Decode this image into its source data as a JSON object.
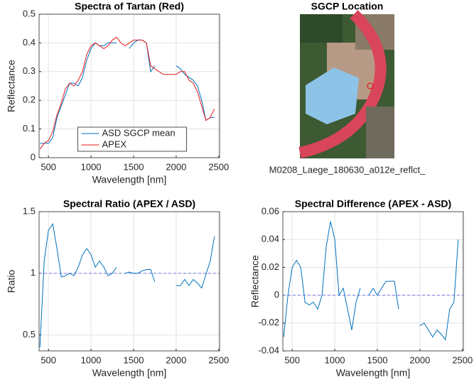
{
  "chart_data": [
    {
      "type": "line",
      "title": "Spectra of Tartan (Red)",
      "xlabel": "Wavelength [nm]",
      "ylabel": "Reflectance",
      "x": [
        400,
        450,
        500,
        550,
        600,
        650,
        700,
        750,
        800,
        850,
        900,
        950,
        1000,
        1050,
        1100,
        1150,
        1200,
        1250,
        1300,
        1350,
        1400,
        1450,
        1500,
        1550,
        1600,
        1650,
        1700,
        1750,
        1800,
        1850,
        1900,
        1950,
        2000,
        2050,
        2100,
        2150,
        2200,
        2250,
        2300,
        2350,
        2400,
        2450
      ],
      "xlim": [
        390,
        2510
      ],
      "xticks": [
        500,
        1000,
        1500,
        2000,
        2500
      ],
      "ylim": [
        0,
        0.5
      ],
      "yticks": [
        0,
        0.1,
        0.2,
        0.3,
        0.4,
        0.5
      ],
      "grid": true,
      "legend": "lower center",
      "series": [
        {
          "name": "ASD SGCP mean",
          "color": "#0072bd",
          "values": [
            0.05,
            0.05,
            0.05,
            0.07,
            0.14,
            0.18,
            0.22,
            0.26,
            0.26,
            0.25,
            0.28,
            0.34,
            0.38,
            0.4,
            0.39,
            0.39,
            0.4,
            0.4,
            0.4,
            null,
            null,
            0.38,
            0.4,
            0.41,
            0.41,
            0.4,
            0.3,
            0.32,
            null,
            null,
            null,
            null,
            0.32,
            0.31,
            0.29,
            0.28,
            0.27,
            0.25,
            0.2,
            0.13,
            0.14,
            0.14
          ]
        },
        {
          "name": "APEX",
          "color": "#e41a1c",
          "values": [
            0.03,
            0.05,
            0.06,
            0.09,
            0.15,
            0.19,
            0.24,
            0.26,
            0.25,
            0.27,
            0.3,
            0.36,
            0.39,
            0.4,
            0.39,
            0.38,
            0.39,
            0.41,
            0.42,
            0.4,
            0.39,
            0.4,
            0.41,
            0.41,
            0.41,
            0.4,
            0.32,
            0.31,
            0.3,
            0.29,
            0.29,
            0.29,
            0.29,
            0.3,
            0.3,
            0.27,
            0.26,
            0.23,
            0.18,
            0.13,
            0.14,
            0.17
          ]
        }
      ]
    },
    {
      "type": "image",
      "title": "SGCP Location",
      "caption": "M0208_Laege_180630_a012e_reflct_"
    },
    {
      "type": "line",
      "title": "Spectral Ratio (APEX / ASD)",
      "xlabel": "Wavelength [nm]",
      "ylabel": "Ratio",
      "x": [
        400,
        450,
        500,
        550,
        600,
        650,
        700,
        750,
        800,
        850,
        900,
        950,
        1000,
        1050,
        1100,
        1150,
        1200,
        1250,
        1300,
        1350,
        1400,
        1450,
        1500,
        1550,
        1600,
        1650,
        1700,
        1750,
        1800,
        1850,
        1900,
        1950,
        2000,
        2050,
        2100,
        2150,
        2200,
        2250,
        2300,
        2350,
        2400,
        2450
      ],
      "xlim": [
        390,
        2510
      ],
      "xticks": [
        500,
        1000,
        1500,
        2000,
        2500
      ],
      "ylim": [
        0.37,
        1.5
      ],
      "yticks": [
        0.5,
        1,
        1.5
      ],
      "grid": true,
      "hline": 1,
      "hline_color": "#7b7bf0",
      "series": [
        {
          "color": "#0072bd",
          "values": [
            0.4,
            1.1,
            1.35,
            1.4,
            1.2,
            0.97,
            0.98,
            1.0,
            0.98,
            1.05,
            1.15,
            1.2,
            1.15,
            1.05,
            1.1,
            1.05,
            0.98,
            1.0,
            1.05,
            null,
            1.0,
            1.01,
            1.0,
            1.0,
            1.02,
            1.03,
            1.03,
            0.93,
            null,
            null,
            null,
            null,
            0.9,
            0.9,
            0.95,
            0.9,
            0.95,
            0.92,
            0.88,
            0.99,
            1.1,
            1.3
          ]
        }
      ]
    },
    {
      "type": "line",
      "title": "Spectral Difference (APEX - ASD)",
      "xlabel": "Wavelength [nm]",
      "ylabel": "Reflectance",
      "x": [
        400,
        450,
        500,
        550,
        600,
        650,
        700,
        750,
        800,
        850,
        900,
        950,
        1000,
        1050,
        1100,
        1150,
        1200,
        1250,
        1300,
        1350,
        1400,
        1450,
        1500,
        1550,
        1600,
        1650,
        1700,
        1750,
        1800,
        1850,
        1900,
        1950,
        2000,
        2050,
        2100,
        2150,
        2200,
        2250,
        2300,
        2350,
        2400,
        2450
      ],
      "xlim": [
        390,
        2510
      ],
      "xticks": [
        500,
        1000,
        1500,
        2000,
        2500
      ],
      "ylim": [
        -0.04,
        0.06
      ],
      "yticks": [
        -0.04,
        -0.02,
        0,
        0.02,
        0.04,
        0.06
      ],
      "grid": true,
      "hline": 0,
      "hline_color": "#7b7bf0",
      "series": [
        {
          "color": "#0072bd",
          "values": [
            -0.03,
            0.0,
            0.02,
            0.025,
            0.02,
            -0.005,
            -0.007,
            -0.005,
            -0.01,
            0.0,
            0.035,
            0.053,
            0.04,
            0.0,
            0.005,
            -0.01,
            -0.025,
            -0.005,
            0.005,
            null,
            0.0,
            0.005,
            0.0,
            0.005,
            0.01,
            0.01,
            0.01,
            -0.01,
            null,
            null,
            null,
            null,
            -0.022,
            -0.02,
            -0.025,
            -0.03,
            -0.025,
            -0.028,
            -0.032,
            -0.01,
            -0.005,
            0.04
          ]
        }
      ]
    }
  ]
}
